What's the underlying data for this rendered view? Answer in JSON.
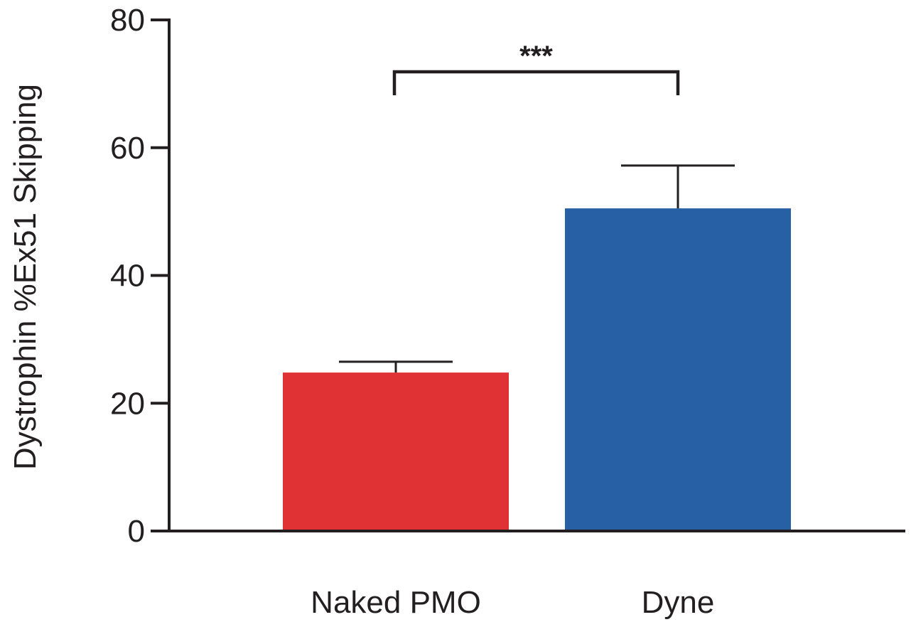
{
  "chart_data": {
    "type": "bar",
    "categories": [
      "Naked PMO",
      "Dyne"
    ],
    "values": [
      24.8,
      50.5
    ],
    "error_upper": [
      26.5,
      57.2
    ],
    "colors": [
      "#e03134",
      "#2760a4"
    ],
    "ylabel": "Dystrophin %Ex51 Skipping",
    "xlabel": "",
    "ylim": [
      0,
      80
    ],
    "yticks": [
      0,
      20,
      40,
      60,
      80
    ],
    "grid": false,
    "significance": {
      "between": [
        "Naked PMO",
        "Dyne"
      ],
      "label": "***"
    }
  }
}
